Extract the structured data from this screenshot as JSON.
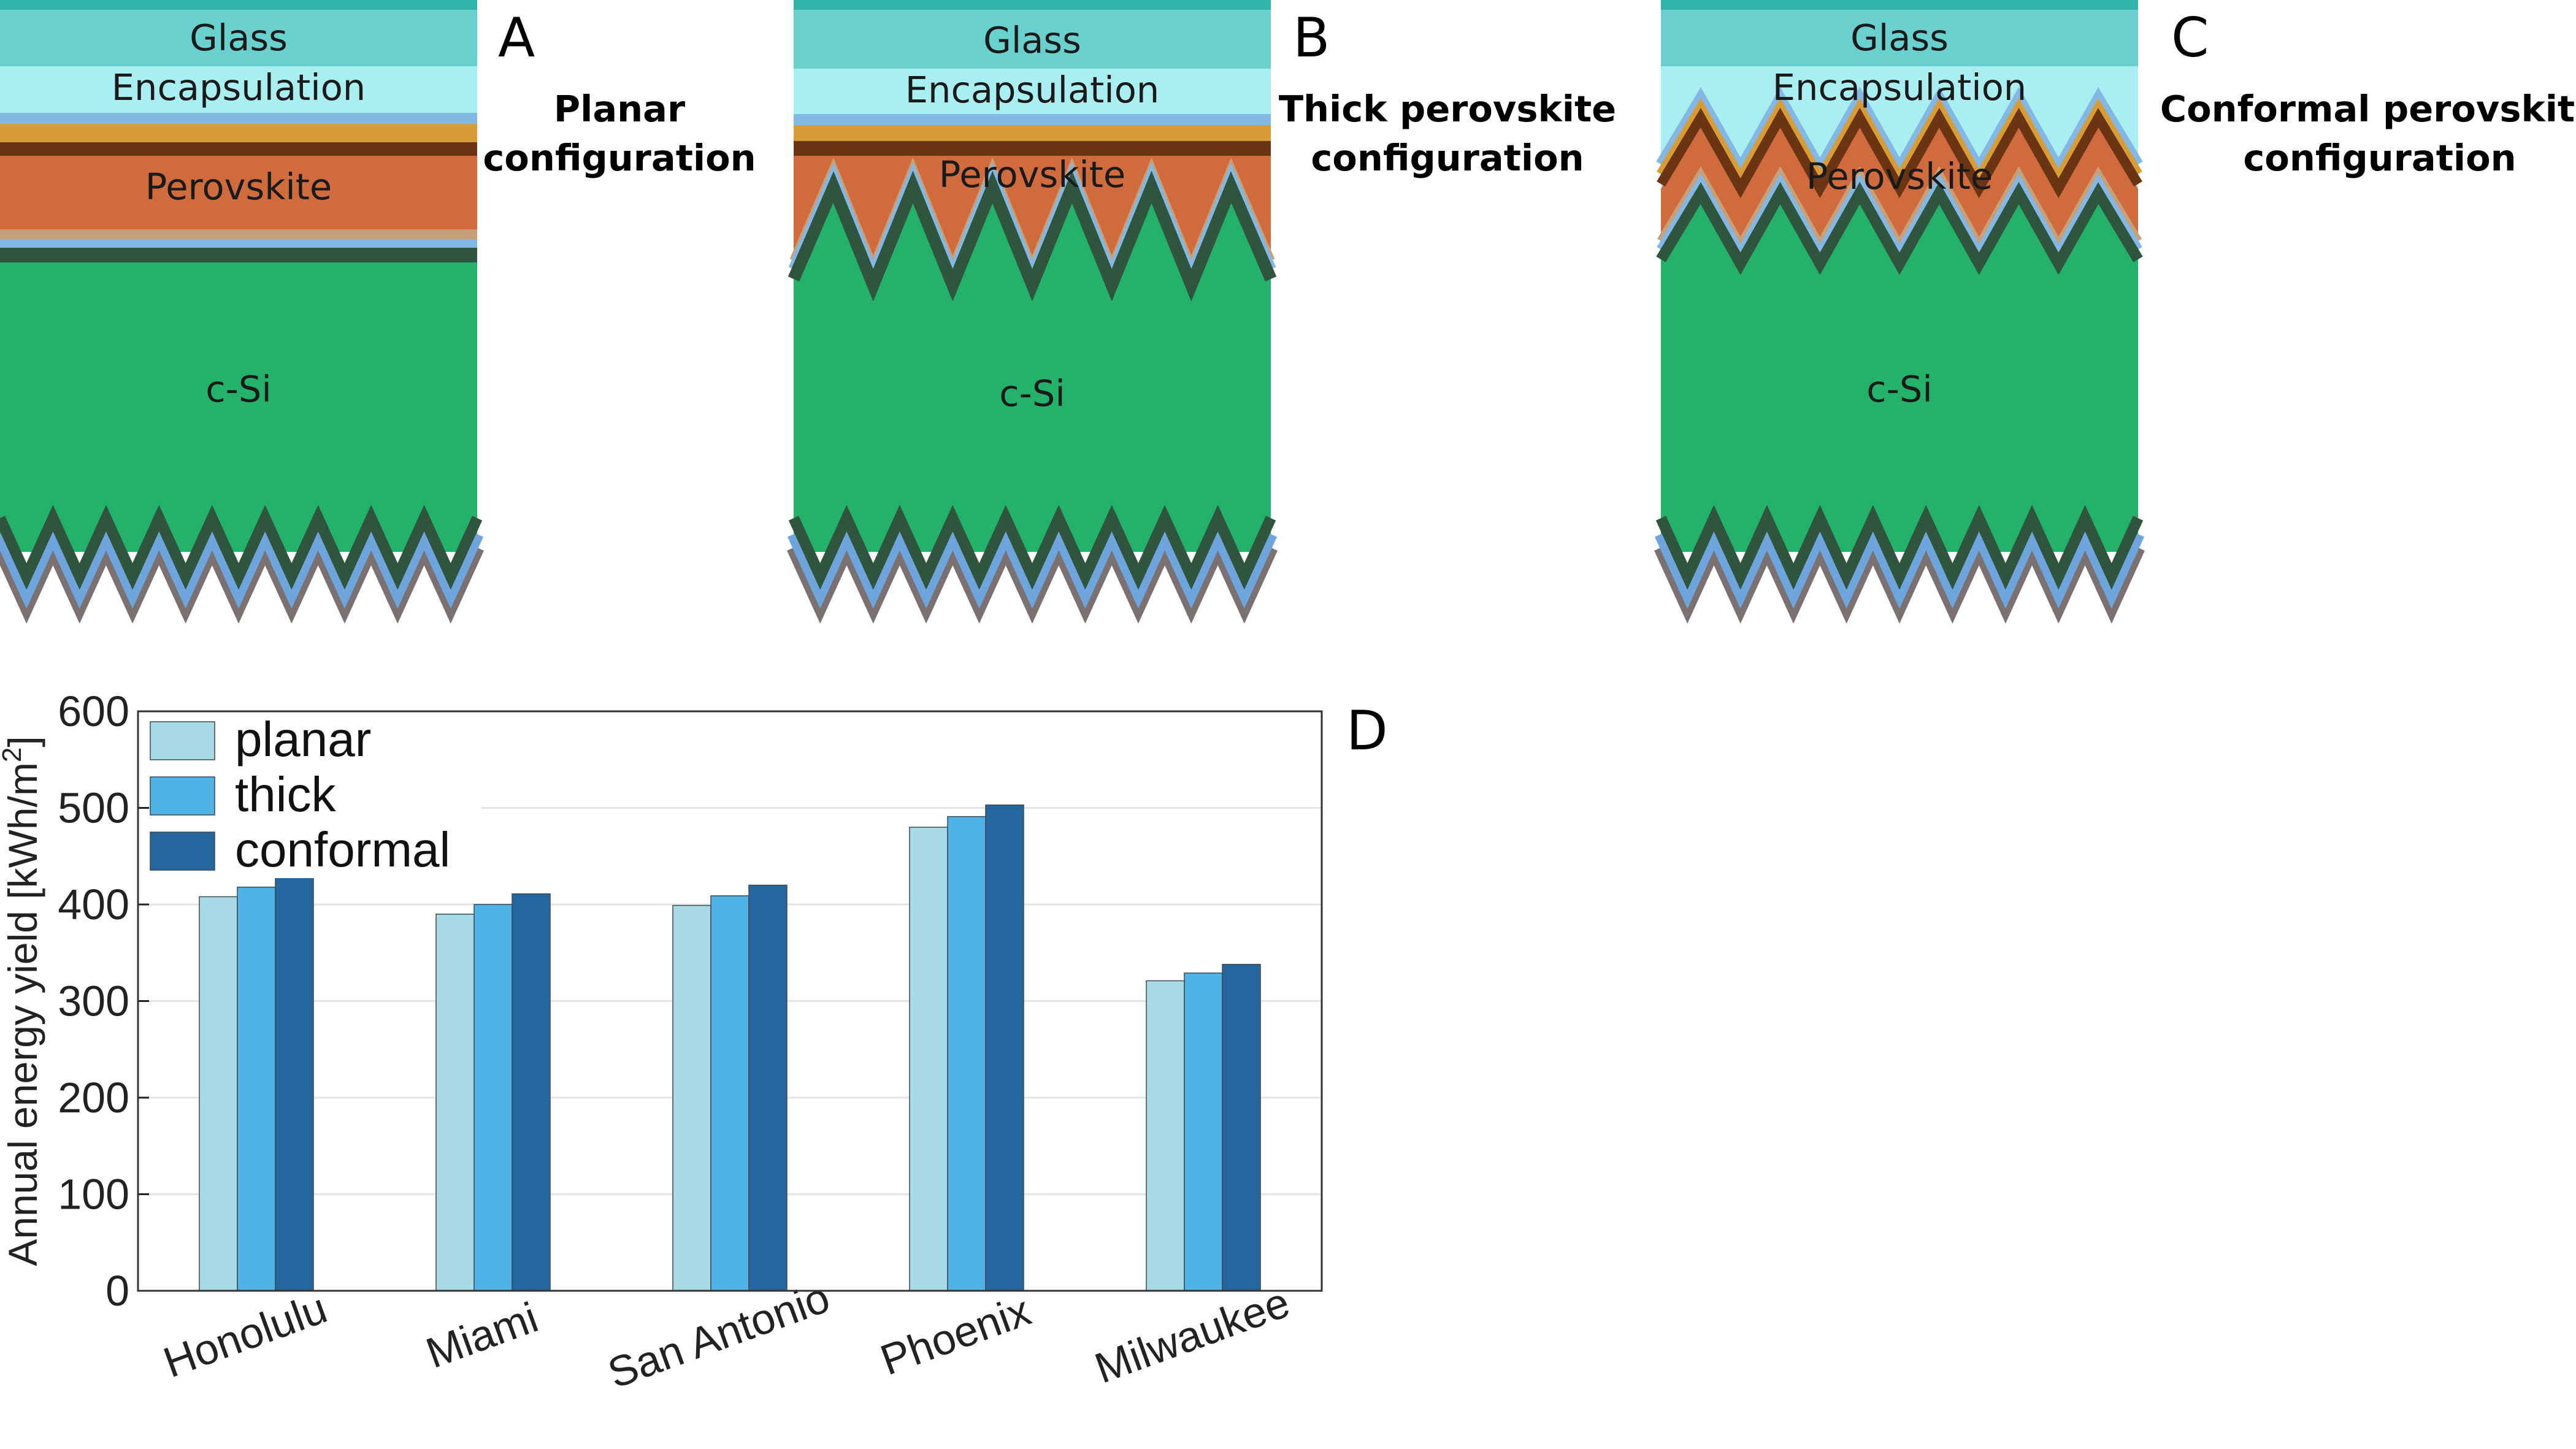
{
  "panels": [
    {
      "letter": "A",
      "title_lines": [
        "Planar",
        "configuration"
      ],
      "layers": {
        "glass": "Glass",
        "encapsulation": "Encapsulation",
        "perovskite": "Perovskite",
        "silicon": "c-Si"
      }
    },
    {
      "letter": "B",
      "title_lines": [
        "Thick perovskite",
        "configuration"
      ],
      "layers": {
        "glass": "Glass",
        "encapsulation": "Encapsulation",
        "perovskite": "Perovskite",
        "silicon": "c-Si"
      }
    },
    {
      "letter": "C",
      "title_lines": [
        "Conformal perovskite",
        "configuration"
      ],
      "layers": {
        "glass": "Glass",
        "encapsulation": "Encapsulation",
        "perovskite": "Perovskite",
        "silicon": "c-Si"
      }
    }
  ],
  "layer_colors": {
    "glass_top": "#2fb5aa",
    "glass": "#6ad0cd",
    "encapsulation": "#a9eef0",
    "blue_contact": "#84b8e4",
    "gold": "#d89c36",
    "brown": "#6b3514",
    "perovskite": "#cf6b3c",
    "tan": "#c7a07a",
    "dark_green": "#2f553f",
    "silicon": "#24b16a",
    "back_blue": "#6fa5dd",
    "back_grey": "#7a7170"
  },
  "chart_panel_letter": "D",
  "chart_data": {
    "type": "bar",
    "categories": [
      "Honolulu",
      "Miami",
      "San Antonio",
      "Phoenix",
      "Milwaukee"
    ],
    "series": [
      {
        "name": "planar",
        "values": [
          408,
          390,
          399,
          480,
          321
        ],
        "color": "#a8dbe6"
      },
      {
        "name": "thick",
        "values": [
          418,
          400,
          409,
          491,
          329
        ],
        "color": "#4fb3e5"
      },
      {
        "name": "conformal",
        "values": [
          428,
          411,
          420,
          503,
          338
        ],
        "color": "#26669f"
      }
    ],
    "ylabel_main": "Annual energy yield [kWh/m",
    "ylabel_sup": "2",
    "ylabel_end": "]",
    "ylim": [
      0,
      600
    ],
    "yticks": [
      "0",
      "100",
      "200",
      "300",
      "400",
      "500",
      "600"
    ],
    "grid": "horizontal",
    "legend_position": "top-left"
  }
}
